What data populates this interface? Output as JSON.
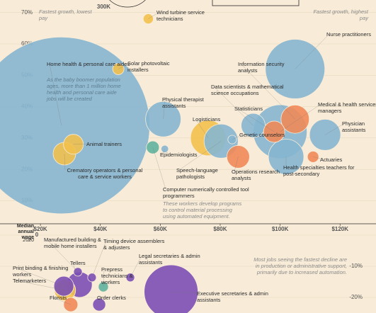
{
  "chart_data": [
    {
      "type": "bubble",
      "x_label": "Median annual wage",
      "x_label_note": "2020",
      "size_legend": {
        "value": 300,
        "label": "300K"
      },
      "annotations": [
        "Fastest growth, lowest pay",
        "Fastest growth, highest pay",
        "As the baby boomer population ages, more than 1 million home health and personal care aide jobs will be created",
        "These workers develop programs to control material processing using automated equipment."
      ],
      "xlim": [
        6.5,
        132
      ],
      "ylim": [
        4,
        74
      ],
      "xticks": [
        {
          "value": 20,
          "label": "$20K"
        },
        {
          "value": 40,
          "label": "$40K"
        },
        {
          "value": 60,
          "label": "$60K"
        },
        {
          "value": 80,
          "label": "$80K"
        },
        {
          "value": 100,
          "label": "$100K"
        },
        {
          "value": 120,
          "label": "$120K"
        }
      ],
      "yticks": [
        {
          "value": 70,
          "label": "70%"
        },
        {
          "value": 60,
          "label": "60%"
        },
        {
          "value": 50,
          "label": "50%"
        },
        {
          "value": 40,
          "label": "40%"
        },
        {
          "value": 30,
          "label": "30%"
        },
        {
          "value": 20,
          "label": "20%"
        },
        {
          "value": 10,
          "label": "10%"
        }
      ],
      "labels": [
        "Home health & personal care aides",
        "Solar photovoltaic installers",
        "Wind turbine service technicians",
        "Animal trainers",
        "Crematory operators & personal care & service workers",
        "Physical therapist assistants",
        "Computer numerically controlled tool programmers",
        "Epidemiologists",
        "Logisticians",
        "Speech-language pathologists",
        "Genetic counselors",
        "Operations research analysts",
        "Data scientists & mathematical science occupations",
        "Statisticians",
        "Information security analysts",
        "Nurse practitioners",
        "Medical & health services managers",
        "Physician assistants",
        "Actuaries",
        "Health specialties teachers for post-secondary"
      ],
      "x": [
        27,
        46,
        56,
        31,
        28,
        61,
        57.5,
        61.5,
        76,
        80.3,
        84,
        86,
        91,
        98,
        105,
        105,
        100,
        115,
        111,
        102
      ],
      "values": [
        34,
        52,
        68,
        28,
        25,
        36,
        27,
        26.5,
        30,
        29,
        29.5,
        24,
        34,
        32,
        36,
        52,
        32,
        31,
        24,
        24
      ],
      "sizes": [
        3400,
        14,
        11,
        43,
        56,
        136,
        18,
        6,
        136,
        126,
        8,
        56,
        63,
        49,
        87,
        385,
        315,
        106,
        14,
        136
      ],
      "colors": [
        "#86b6d0",
        "#f2c14e",
        "#f2c14e",
        "#f2c14e",
        "#f2c14e",
        "#86b6d0",
        "#5fb39f",
        "#86b6d0",
        "#f2c14e",
        "#86b6d0",
        "#86b6d0",
        "#ef8a58",
        "#86b6d0",
        "#ef8a58",
        "#ef8a58",
        "#86b6d0",
        "#86b6d0",
        "#86b6d0",
        "#ef8a58",
        "#86b6d0"
      ]
    },
    {
      "type": "bubble",
      "annotations": [
        "Most jobs seeing the fastest decline are in production or administrative support, primarily due to increased automation."
      ],
      "xlim": [
        6.5,
        132
      ],
      "ylim": [
        -25,
        0
      ],
      "yticks": [
        0,
        {
          "value": -10,
          "label": "-10%"
        },
        {
          "value": -20,
          "label": "-20%"
        }
      ],
      "labels": [
        "Manufactured building & mobile home installers",
        "Tellers",
        "Print binding & finishing workers",
        "Telemarketers",
        "Florists",
        "Timing device assemblers & adjusters",
        "Prepress technicians & workers",
        "Order clerks",
        "Legal secretaries & admin assistants",
        "Executive secretaries & admin assistants"
      ],
      "x": [
        32.5,
        33,
        27.8,
        28.2,
        30.1,
        37.2,
        41,
        39.6,
        50,
        63.6
      ],
      "values": [
        -11.8,
        -15.9,
        -16.4,
        -17.7,
        -22.3,
        -13.6,
        -16.6,
        -22.3,
        -13.6,
        -18.2
      ],
      "sizes": [
        8,
        71,
        43,
        49,
        22,
        8,
        11,
        18,
        8,
        315
      ],
      "colors": [
        "#7b4fb5",
        "#7b4fb5",
        "#7b4fb5",
        "#f2c14e",
        "#ef8a58",
        "#7b4fb5",
        "#5fb39f",
        "#7b4fb5",
        "#7b4fb5",
        "#7b4fb5"
      ]
    }
  ]
}
